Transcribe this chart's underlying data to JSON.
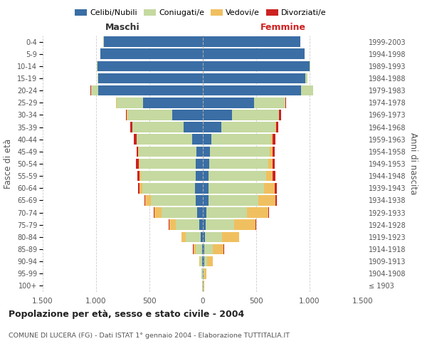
{
  "age_groups": [
    "100+",
    "95-99",
    "90-94",
    "85-89",
    "80-84",
    "75-79",
    "70-74",
    "65-69",
    "60-64",
    "55-59",
    "50-54",
    "45-49",
    "40-44",
    "35-39",
    "30-34",
    "25-29",
    "20-24",
    "15-19",
    "10-14",
    "5-9",
    "0-4"
  ],
  "birth_years": [
    "≤ 1903",
    "1904-1908",
    "1909-1913",
    "1914-1918",
    "1919-1923",
    "1924-1928",
    "1929-1933",
    "1934-1938",
    "1939-1943",
    "1944-1948",
    "1949-1953",
    "1954-1958",
    "1959-1963",
    "1964-1968",
    "1969-1973",
    "1974-1978",
    "1979-1983",
    "1984-1988",
    "1989-1993",
    "1994-1998",
    "1999-2003"
  ],
  "male": {
    "celibe": [
      2,
      3,
      5,
      10,
      20,
      35,
      55,
      70,
      75,
      70,
      65,
      60,
      100,
      180,
      290,
      560,
      980,
      980,
      990,
      960,
      930
    ],
    "coniugato": [
      3,
      8,
      20,
      60,
      140,
      220,
      330,
      420,
      490,
      510,
      530,
      540,
      520,
      480,
      420,
      250,
      70,
      10,
      5,
      2,
      1
    ],
    "vedovo": [
      1,
      3,
      8,
      20,
      40,
      60,
      70,
      50,
      30,
      15,
      8,
      5,
      3,
      2,
      1,
      1,
      0,
      0,
      0,
      0,
      0
    ],
    "divorziato": [
      0,
      0,
      0,
      1,
      2,
      3,
      5,
      8,
      12,
      18,
      22,
      18,
      22,
      18,
      10,
      5,
      2,
      0,
      0,
      0,
      0
    ]
  },
  "female": {
    "nubile": [
      2,
      5,
      10,
      15,
      20,
      25,
      35,
      50,
      55,
      55,
      60,
      65,
      80,
      170,
      270,
      480,
      920,
      960,
      1000,
      950,
      910
    ],
    "coniugata": [
      3,
      10,
      30,
      80,
      160,
      270,
      380,
      470,
      520,
      540,
      550,
      560,
      560,
      510,
      440,
      290,
      110,
      20,
      5,
      2,
      1
    ],
    "vedova": [
      5,
      20,
      50,
      100,
      160,
      200,
      200,
      160,
      100,
      60,
      40,
      25,
      15,
      8,
      5,
      3,
      1,
      0,
      0,
      0,
      0
    ],
    "divorziata": [
      0,
      0,
      1,
      2,
      3,
      5,
      8,
      12,
      18,
      22,
      22,
      22,
      22,
      20,
      15,
      8,
      3,
      0,
      0,
      0,
      0
    ]
  },
  "colors": {
    "celibe": "#3a6ea5",
    "coniugato": "#c5d9a0",
    "vedovo": "#f0c060",
    "divorziato": "#cc2222"
  },
  "xlim": 1500,
  "xticks": [
    -1500,
    -1000,
    -500,
    0,
    500,
    1000,
    1500
  ],
  "xticklabels": [
    "1.500",
    "1.000",
    "500",
    "0",
    "500",
    "1.000",
    "1.500"
  ],
  "title": "Popolazione per età, sesso e stato civile - 2004",
  "subtitle": "COMUNE DI LUCERA (FG) - Dati ISTAT 1° gennaio 2004 - Elaborazione TUTTITALIA.IT",
  "ylabel_left": "Fasce di età",
  "ylabel_right": "Anni di nascita",
  "label_maschi": "Maschi",
  "label_femmine": "Femmine",
  "legend_labels": [
    "Celibi/Nubili",
    "Coniugati/e",
    "Vedovi/e",
    "Divorziati/e"
  ],
  "background_color": "#ffffff",
  "bar_height": 0.85
}
